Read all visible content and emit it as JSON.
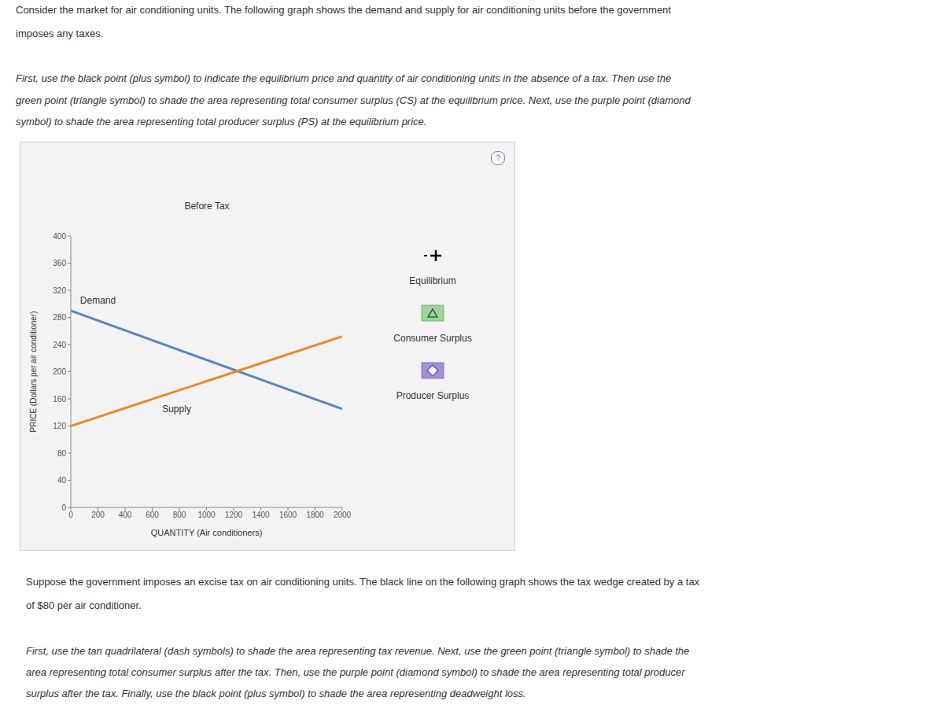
{
  "paragraphs_top": [
    [
      "Consider the market for air conditioning units. The following graph shows the demand and supply for air conditioning units before the government",
      "imposes any taxes."
    ],
    [
      "First, use the black point (plus symbol) to indicate the equilibrium price and quantity of air conditioning units in the absence of a tax. Then use the",
      "green point (triangle symbol) to shade the area representing total consumer surplus (CS) at the equilibrium price. Next, use the purple point (diamond",
      "symbol) to shade the area representing total producer surplus (PS) at the equilibrium price."
    ]
  ],
  "help_icon": "?",
  "chart_data": {
    "type": "line",
    "title": "Before Tax",
    "x_label": "QUANTITY (Air conditioners)",
    "y_label": "PRICE (Dollars per air conditioner)",
    "x": [
      0,
      2000
    ],
    "series": [
      {
        "name": "Demand",
        "color": "#5b87b9",
        "values": [
          290,
          145
        ]
      },
      {
        "name": "Supply",
        "color": "#e8892b",
        "values": [
          120,
          252
        ]
      }
    ],
    "xlim": [
      0,
      2000
    ],
    "xticks": [
      0,
      200,
      400,
      600,
      800,
      1000,
      1200,
      1400,
      1600,
      1800,
      2000
    ],
    "ylim": [
      0,
      400
    ],
    "yticks": [
      0,
      40,
      80,
      120,
      160,
      200,
      240,
      280,
      320,
      360,
      400
    ],
    "grid": false,
    "annotations": [
      {
        "text": "Demand",
        "x": 200,
        "y": 305
      },
      {
        "text": "Supply",
        "x": 780,
        "y": 145
      }
    ]
  },
  "legend_panel": [
    {
      "label": "Equilibrium",
      "marker": "plus",
      "color": "#000000"
    },
    {
      "label": "Consumer Surplus",
      "marker": "triangle",
      "color": "#9fd39f"
    },
    {
      "label": "Producer Surplus",
      "marker": "diamond",
      "color": "#a58fd6"
    }
  ],
  "paragraphs_bottom": [
    [
      "Suppose the government imposes an excise tax on air conditioning units. The black line on the following graph shows the tax wedge created by a tax",
      "of $80 per air conditioner."
    ],
    [
      "First, use the tan quadrilateral (dash symbols) to shade the area representing tax revenue. Next, use the green point (triangle symbol) to shade the",
      "area representing total consumer surplus after the tax. Then, use the purple point (diamond symbol) to shade the area representing total producer",
      "surplus after the tax. Finally, use the black point (plus symbol) to shade the area representing deadweight loss."
    ]
  ]
}
